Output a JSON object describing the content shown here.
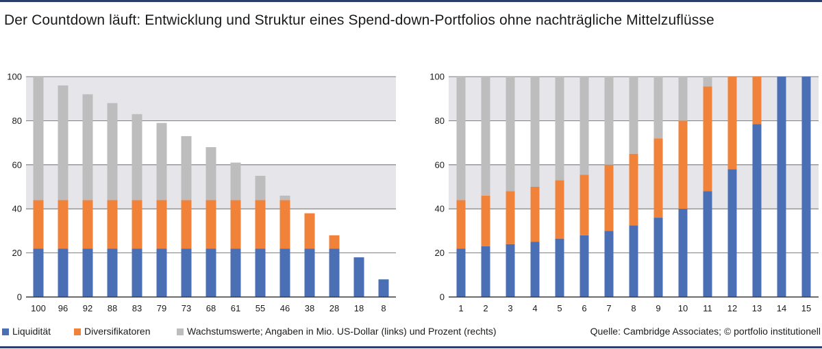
{
  "title": "Der Countdown läuft: Entwicklung und Struktur eines Spend-down-Portfolios ohne nachträgliche Mittelzuflüsse",
  "colors": {
    "liquiditaet": "#4a6fb5",
    "diversifikatoren": "#f0823a",
    "wachstumswerte": "#bdbdbd",
    "band": "#e6e6ea",
    "rule": "#2b3d6b"
  },
  "legend": {
    "items": [
      {
        "label": "Liquidität",
        "color": "#4a6fb5"
      },
      {
        "label": "Diversifikatoren",
        "color": "#f0823a"
      },
      {
        "label": "Wachstumswerte; Angaben in Mio. US-Dollar (links) und Prozent (rechts)",
        "color": "#bdbdbd"
      }
    ]
  },
  "source": "Quelle: Cambridge Associates; © portfolio institutionell",
  "chart_data": [
    {
      "type": "bar",
      "stacked": true,
      "categories": [
        "100",
        "96",
        "92",
        "88",
        "83",
        "79",
        "73",
        "68",
        "61",
        "55",
        "46",
        "38",
        "28",
        "18",
        "8"
      ],
      "series": [
        {
          "name": "Liquidität",
          "values": [
            22,
            22,
            22,
            22,
            22,
            22,
            22,
            22,
            22,
            22,
            22,
            22,
            22,
            18,
            8
          ]
        },
        {
          "name": "Diversifikatoren",
          "values": [
            22,
            22,
            22,
            22,
            22,
            22,
            22,
            22,
            22,
            22,
            22,
            16,
            6,
            0,
            0
          ]
        },
        {
          "name": "Wachstumswerte",
          "values": [
            56,
            52,
            48,
            44,
            39,
            35,
            29,
            24,
            17,
            11,
            2,
            0,
            0,
            0,
            0
          ]
        }
      ],
      "ylim": [
        0,
        100
      ],
      "yticks": [
        "0",
        "20",
        "40",
        "60",
        "80",
        "100"
      ],
      "grid": true
    },
    {
      "type": "bar",
      "stacked": true,
      "categories": [
        "1",
        "2",
        "3",
        "4",
        "5",
        "6",
        "7",
        "8",
        "9",
        "10",
        "11",
        "12",
        "13",
        "14",
        "15"
      ],
      "series": [
        {
          "name": "Liquidität",
          "values": [
            22,
            23,
            24,
            25,
            26.5,
            28,
            30,
            32.5,
            36,
            40,
            48,
            58,
            78.5,
            100,
            100
          ]
        },
        {
          "name": "Diversifikatoren",
          "values": [
            22,
            23,
            24,
            25,
            26.5,
            27.5,
            30,
            32.5,
            36,
            40,
            47.5,
            42,
            21.5,
            0,
            0
          ]
        },
        {
          "name": "Wachstumswerte",
          "values": [
            56,
            54,
            52,
            50,
            47,
            44.5,
            40,
            35,
            28,
            20,
            4.5,
            0,
            0,
            0,
            0
          ]
        }
      ],
      "ylim": [
        0,
        100
      ],
      "yticks": [
        "0",
        "20",
        "40",
        "60",
        "80",
        "100"
      ],
      "grid": true
    }
  ]
}
